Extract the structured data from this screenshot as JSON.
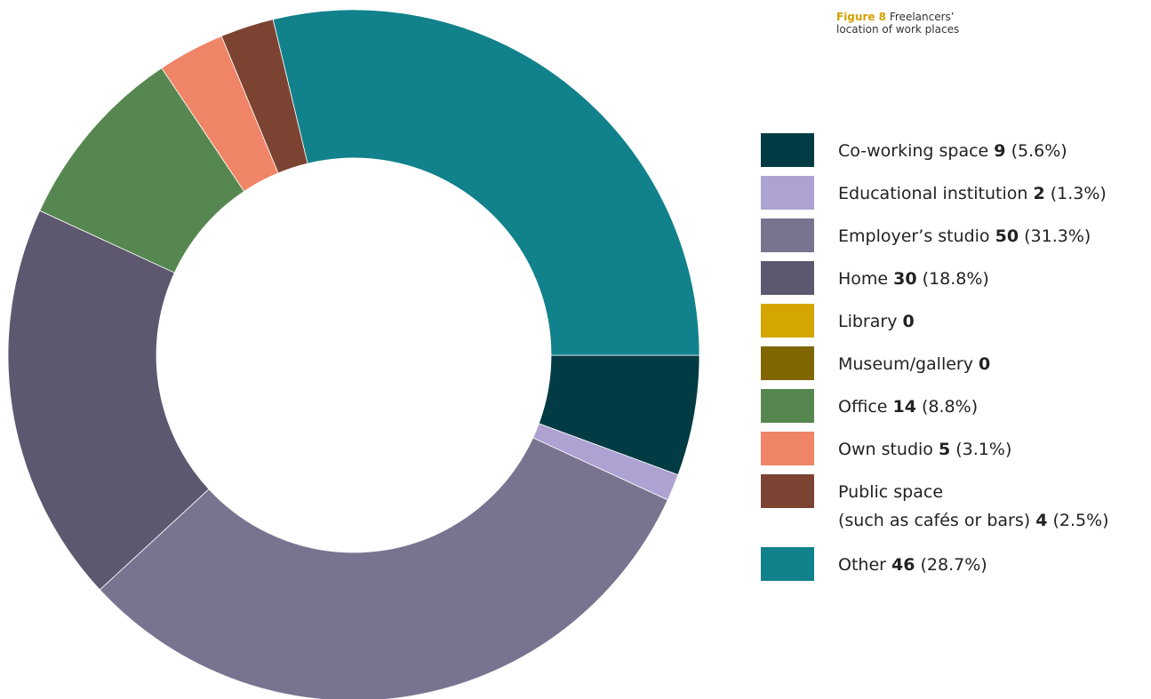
{
  "caption": {
    "figure": "Figure 8",
    "title_line1": "Freelancers’",
    "title_line2": "location of work places"
  },
  "chart_data": {
    "type": "pie",
    "variant": "donut",
    "title": "Freelancers’ location of work places",
    "legend_position": "right",
    "start": "Co-working space slice begins at 3 o'clock, proceeding clockwise",
    "slices": [
      {
        "label": "Co-working space",
        "value": 9,
        "percent": "(5.6%)",
        "color": "#033b44"
      },
      {
        "label": "Educational institution",
        "value": 2,
        "percent": "(1.3%)",
        "color": "#ada2d1"
      },
      {
        "label": "Employer’s studio",
        "value": 50,
        "percent": "(31.3%)",
        "color": "#7a7390"
      },
      {
        "label": "Home",
        "value": 30,
        "percent": "(18.8%)",
        "color": "#5d576f"
      },
      {
        "label": "Library",
        "value": 0,
        "percent": "",
        "color": "#d5a500"
      },
      {
        "label": "Museum/gallery",
        "value": 0,
        "percent": "",
        "color": "#806600"
      },
      {
        "label": "Office",
        "value": 14,
        "percent": "(8.8%)",
        "color": "#578751"
      },
      {
        "label": "Own studio",
        "value": 5,
        "percent": "(3.1%)",
        "color": "#f08466"
      },
      {
        "label": "Public space",
        "label_line2": "(such as cafés or bars)",
        "value": 4,
        "percent": "(2.5%)",
        "color": "#7c4332"
      },
      {
        "label": "Other",
        "value": 46,
        "percent": "(28.7%)",
        "color": "#11818b"
      }
    ]
  }
}
